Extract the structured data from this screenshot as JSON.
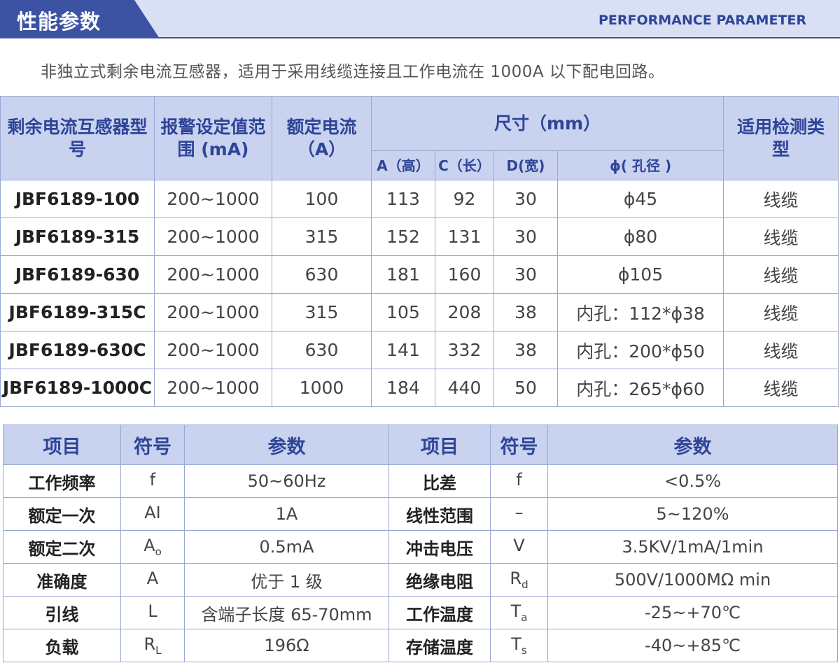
{
  "header": {
    "title_cn": "性能参数",
    "title_en": "PERFORMANCE PARAMETER"
  },
  "description": "非独立式剩余电流互感器，适用于采用线缆连接且工作电流在 1000A 以下配电回路。",
  "spec_table": {
    "headers": {
      "model": "剩余电流互感器型号",
      "alarm": "报警设定值范围 (mA)",
      "rated": "额定电流（A）",
      "size": "尺寸（mm）",
      "detect": "适用检测类型",
      "a": "A（高）",
      "c": "C（长）",
      "d": "D(宽)",
      "phi": "ϕ( 孔径 )"
    },
    "rows": [
      {
        "model": "JBF6189-100",
        "alarm": "200~1000",
        "rated": "100",
        "a": "113",
        "c": "92",
        "d": "30",
        "phi": "ϕ45",
        "detect": "线缆"
      },
      {
        "model": "JBF6189-315",
        "alarm": "200~1000",
        "rated": "315",
        "a": "152",
        "c": "131",
        "d": "30",
        "phi": "ϕ80",
        "detect": "线缆"
      },
      {
        "model": "JBF6189-630",
        "alarm": "200~1000",
        "rated": "630",
        "a": "181",
        "c": "160",
        "d": "30",
        "phi": "ϕ105",
        "detect": "线缆"
      },
      {
        "model": "JBF6189-315C",
        "alarm": "200~1000",
        "rated": "315",
        "a": "105",
        "c": "208",
        "d": "38",
        "phi": "内孔：112*ϕ38",
        "detect": "线缆"
      },
      {
        "model": "JBF6189-630C",
        "alarm": "200~1000",
        "rated": "630",
        "a": "141",
        "c": "332",
        "d": "38",
        "phi": "内孔：200*ϕ50",
        "detect": "线缆"
      },
      {
        "model": "JBF6189-1000C",
        "alarm": "200~1000",
        "rated": "1000",
        "a": "184",
        "c": "440",
        "d": "50",
        "phi": "内孔：265*ϕ60",
        "detect": "线缆"
      }
    ]
  },
  "param_table": {
    "headers": {
      "item": "项目",
      "symbol": "符号",
      "param": "参数"
    },
    "rows": [
      {
        "l_item": "工作频率",
        "l_sym": "f",
        "l_sub": "",
        "l_val": "50~60Hz",
        "r_item": "比差",
        "r_sym": "f",
        "r_sub": "",
        "r_val": "<0.5%"
      },
      {
        "l_item": "额定一次",
        "l_sym": "AI",
        "l_sub": "",
        "l_val": "1A",
        "r_item": "线性范围",
        "r_sym": "–",
        "r_sub": "",
        "r_val": "5~120%"
      },
      {
        "l_item": "额定二次",
        "l_sym": "A",
        "l_sub": "o",
        "l_val": "0.5mA",
        "r_item": "冲击电压",
        "r_sym": "V",
        "r_sub": "",
        "r_val": "3.5KV/1mA/1min"
      },
      {
        "l_item": "准确度",
        "l_sym": "A",
        "l_sub": "",
        "l_val": "优于 1 级",
        "r_item": "绝缘电阻",
        "r_sym": "R",
        "r_sub": "d",
        "r_val": "500V/1000MΩ min"
      },
      {
        "l_item": "引线",
        "l_sym": "L",
        "l_sub": "",
        "l_val": "含端子长度 65-70mm",
        "r_item": "工作温度",
        "r_sym": "T",
        "r_sub": "a",
        "r_val": "-25~+70℃"
      },
      {
        "l_item": "负载",
        "l_sym": "R",
        "l_sub": "L",
        "l_val": "196Ω",
        "r_item": "存储温度",
        "r_sym": "T",
        "r_sub": "s",
        "r_val": "-40~+85℃"
      }
    ]
  }
}
